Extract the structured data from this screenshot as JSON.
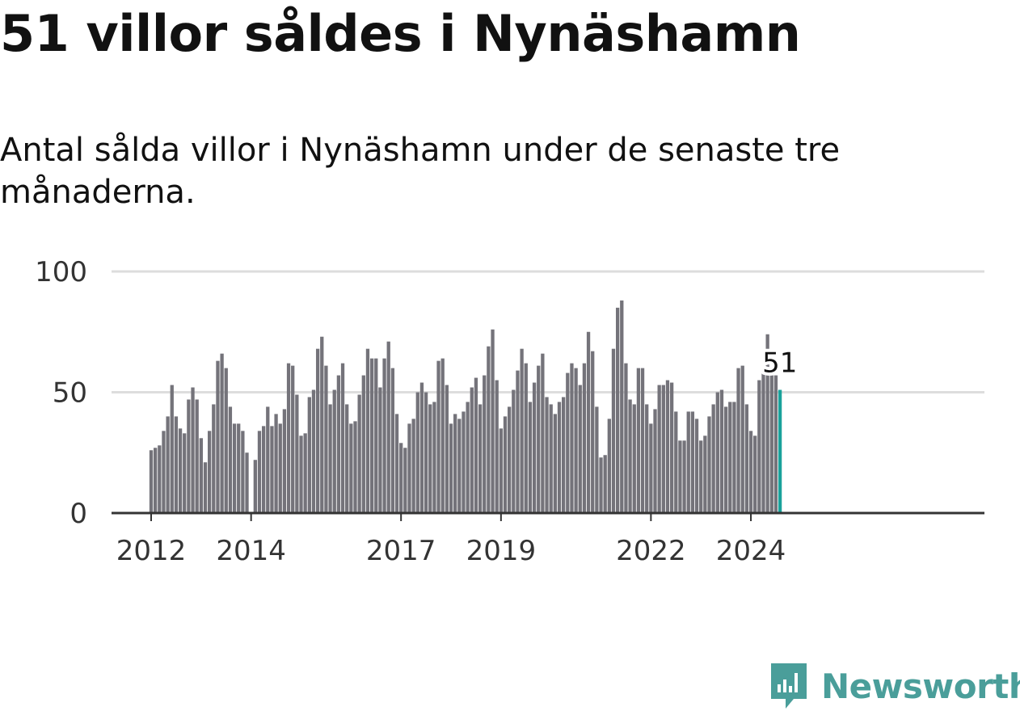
{
  "title": "51 villor såldes i Nynäshamn",
  "subtitle": "Antal sålda villor i Nynäshamn under de senaste tre månaderna.",
  "logo": {
    "text": "Newsworthy",
    "icon": "newsworthy-logo-icon"
  },
  "colors": {
    "bar": "#74737a",
    "highlight": "#1aa29b",
    "grid": "#dddddd",
    "axis": "#333333"
  },
  "chart_data": {
    "type": "bar",
    "title": "51 villor såldes i Nynäshamn",
    "xlabel": "",
    "ylabel": "",
    "ylim": [
      0,
      100
    ],
    "yticks": [
      0,
      50,
      100
    ],
    "start": "2012-01",
    "x_tick_labels": [
      {
        "label": "2012",
        "index": 0
      },
      {
        "label": "2014",
        "index": 24
      },
      {
        "label": "2017",
        "index": 60
      },
      {
        "label": "2019",
        "index": 84
      },
      {
        "label": "2022",
        "index": 120
      },
      {
        "label": "2024",
        "index": 144
      }
    ],
    "values": [
      26,
      27,
      28,
      34,
      40,
      53,
      40,
      35,
      33,
      47,
      52,
      47,
      31,
      21,
      34,
      45,
      63,
      66,
      60,
      44,
      37,
      37,
      34,
      25,
      null,
      22,
      34,
      36,
      44,
      36,
      41,
      37,
      43,
      62,
      61,
      49,
      32,
      33,
      48,
      51,
      68,
      73,
      61,
      45,
      51,
      57,
      62,
      45,
      37,
      38,
      49,
      57,
      68,
      64,
      64,
      52,
      64,
      71,
      60,
      41,
      29,
      27,
      37,
      39,
      50,
      54,
      50,
      45,
      46,
      63,
      64,
      53,
      37,
      41,
      39,
      42,
      46,
      52,
      56,
      45,
      57,
      69,
      76,
      55,
      35,
      40,
      44,
      51,
      59,
      68,
      62,
      46,
      54,
      61,
      66,
      48,
      45,
      41,
      46,
      48,
      58,
      62,
      60,
      53,
      62,
      75,
      67,
      44,
      23,
      24,
      39,
      68,
      85,
      88,
      62,
      47,
      45,
      60,
      60,
      45,
      37,
      43,
      53,
      53,
      55,
      54,
      42,
      30,
      30,
      42,
      42,
      39,
      30,
      32,
      40,
      45,
      50,
      51,
      44,
      46,
      46,
      60,
      61,
      45,
      34,
      32,
      55,
      60,
      74,
      57,
      57,
      51
    ],
    "highlight_index": 151,
    "annotation": "51"
  }
}
